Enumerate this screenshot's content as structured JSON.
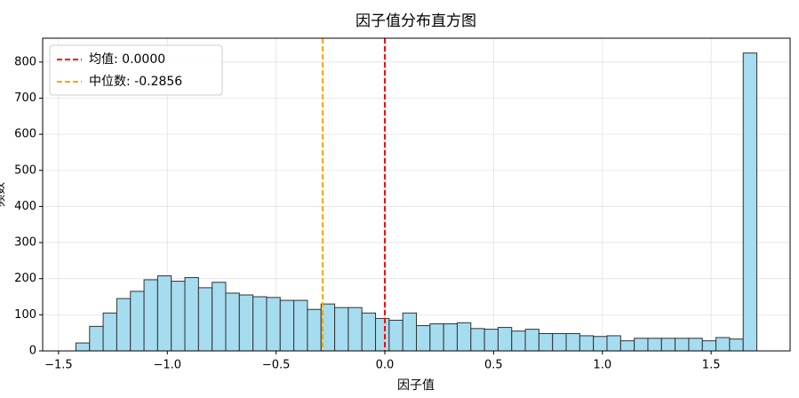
{
  "chart_data": {
    "type": "histogram",
    "title": "因子值分布直方图",
    "xlabel": "因子值",
    "ylabel": "频数",
    "bins": [
      -1.42,
      -1.3574,
      -1.2948,
      -1.2322,
      -1.1696,
      -1.107,
      -1.0444,
      -0.9818,
      -0.9192,
      -0.8566,
      -0.794,
      -0.7314,
      -0.6688,
      -0.6062,
      -0.5436,
      -0.481,
      -0.4184,
      -0.3558,
      -0.2932,
      -0.2306,
      -0.168,
      -0.1054,
      -0.0428,
      0.0198,
      0.0824,
      0.145,
      0.2076,
      0.2702,
      0.3328,
      0.3954,
      0.458,
      0.5206,
      0.5832,
      0.6458,
      0.7084,
      0.771,
      0.8336,
      0.8962,
      0.9588,
      1.0214,
      1.084,
      1.1466,
      1.2092,
      1.2718,
      1.3344,
      1.397,
      1.4596,
      1.5222,
      1.5848,
      1.6474,
      1.71
    ],
    "values": [
      22,
      68,
      105,
      145,
      165,
      197,
      208,
      193,
      203,
      175,
      190,
      160,
      155,
      150,
      148,
      140,
      140,
      115,
      130,
      120,
      120,
      105,
      90,
      85,
      105,
      70,
      75,
      75,
      78,
      62,
      60,
      65,
      55,
      60,
      48,
      48,
      48,
      42,
      40,
      42,
      28,
      35,
      35,
      35,
      35,
      35,
      28,
      37,
      33,
      825
    ],
    "color": "#a6dcef",
    "edgecolor": "#333333",
    "lines": [
      {
        "label": "均值: 0.0000",
        "value": 0,
        "color": "#ff0000"
      },
      {
        "label": "中位数: -0.2856",
        "value": -0.2856,
        "color": "#ffa500"
      }
    ],
    "xlim": [
      -1.573,
      1.863
    ],
    "ylim": [
      0,
      866
    ],
    "xticks": [
      {
        "value": -1.5,
        "label": "−1.5"
      },
      {
        "value": -1.0,
        "label": "−1.0"
      },
      {
        "value": -0.5,
        "label": "−0.5"
      },
      {
        "value": 0.0,
        "label": "0.0"
      },
      0.5,
      {
        "value": 1.0,
        "label": "1.0"
      },
      1.5
    ],
    "yticks": [
      0,
      100,
      200,
      300,
      400,
      500,
      600,
      700,
      800
    ],
    "grid": true,
    "legend": "upper left"
  }
}
